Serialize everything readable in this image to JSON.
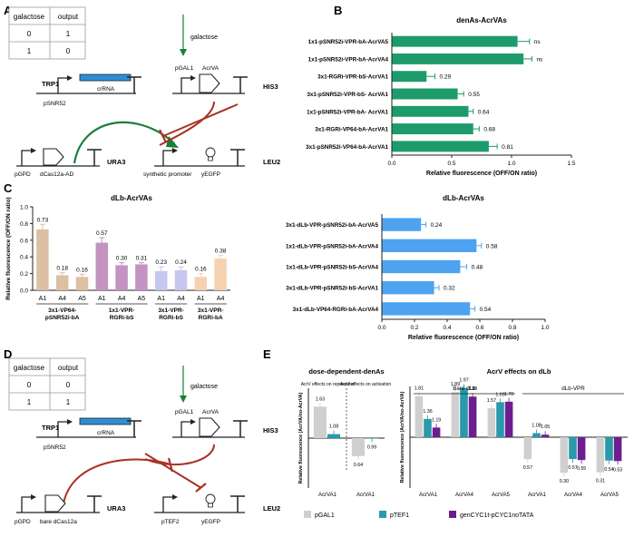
{
  "panels": {
    "A": "A",
    "B": "B",
    "C": "C",
    "D": "D",
    "E": "E"
  },
  "truth_table_A": {
    "header": [
      "galactose",
      "output"
    ],
    "rows": [
      [
        "0",
        "1"
      ],
      [
        "1",
        "0"
      ]
    ]
  },
  "truth_table_D": {
    "header": [
      "galactose",
      "output"
    ],
    "rows": [
      [
        "0",
        "0"
      ],
      [
        "1",
        "1"
      ]
    ]
  },
  "circuit_A": {
    "galactose": "galactose",
    "trp1": "TRP1",
    "psnr52": "pSNR52",
    "crrna": "crRNA",
    "pgal1": "pGAL1",
    "acrva": "AcrVA",
    "his3": "HIS3",
    "pgpd": "pGPD",
    "cas": "dCas12a-AD",
    "ura3": "URA3",
    "synthetic": "synthetic promoter",
    "yegfp": "yEGFP",
    "leu2": "LEU2",
    "colors": {
      "activation": "#1a7f37",
      "repression": "#a83224",
      "crrna_fill": "#2b8fd6"
    }
  },
  "circuit_D": {
    "galactose": "galactose",
    "trp1": "TRP1",
    "psnr52": "pSNR52",
    "crrna": "crRNA",
    "pgal1": "pGAL1",
    "acrva": "AcrVA",
    "his3": "HIS3",
    "pgpd": "pGPD",
    "cas": "bare dCas12a",
    "ura3": "URA3",
    "ptef2": "pTEF2",
    "yegfp": "yEGFP",
    "leu2": "LEU2"
  },
  "chart_data": [
    {
      "id": "B",
      "type": "bar",
      "orientation": "horizontal",
      "title": "denAs-AcrVAs",
      "xlabel": "Relative fluorescence (OFF/ON ratio)",
      "xlim": [
        0,
        1.5
      ],
      "xticks": [
        "0.0",
        "0.5",
        "1.0",
        "1.5"
      ],
      "categories": [
        "1x1-pSNR52i-VPR-bA-AcrVA5",
        "1x1-pSNR52i-VPR-bA-AcrVA4",
        "3x1-RGRi-VPR-bS-AcrVA1",
        "3x1-pSNR52i-VPR-bS- AcrVA1",
        "1x1-pSNR52i-VPR-bA- AcrVA1",
        "3x1-RGRi-VP64-bA-AcrVA1",
        "3x1-pSNR52i-VP64-bA-AcrVA1"
      ],
      "values": [
        1.05,
        1.1,
        0.29,
        0.55,
        0.64,
        0.68,
        0.81
      ],
      "errors": [
        0.1,
        0.07,
        0.07,
        0.05,
        0.04,
        0.05,
        0.07
      ],
      "labels": [
        "ns",
        "ns",
        "0.29",
        "0.55",
        "0.64",
        "0.68",
        "0.81"
      ],
      "color": "#1e9b6b"
    },
    {
      "id": "C-left",
      "type": "bar",
      "title": "dLb-AcrVAs",
      "ylabel": "Relative fluorescence (OFF/ON ratio)",
      "ylim": [
        0,
        1.0
      ],
      "yticks": [
        "0.0",
        "0.2",
        "0.4",
        "0.6",
        "0.8",
        "1.0"
      ],
      "categories": [
        "A1",
        "A4",
        "A5",
        "A1",
        "A4",
        "A5",
        "A1",
        "A4",
        "A1",
        "A4"
      ],
      "values": [
        0.73,
        0.18,
        0.16,
        0.57,
        0.3,
        0.31,
        0.23,
        0.24,
        0.16,
        0.38
      ],
      "errors": [
        0.06,
        0.03,
        0.03,
        0.06,
        0.03,
        0.02,
        0.05,
        0.04,
        0.04,
        0.04
      ],
      "labels": [
        "0.73",
        "0.18",
        "0.16",
        "0.57",
        "0.30",
        "0.31",
        "0.23",
        "0.24",
        "0.16",
        "0.38"
      ],
      "bar_colors": [
        "#dcc0a4",
        "#dcc0a4",
        "#dcc0a4",
        "#c393c1",
        "#c393c1",
        "#c393c1",
        "#c6c6ee",
        "#c6c6ee",
        "#f6d2b2",
        "#f6d2b2"
      ],
      "groups": [
        {
          "label": [
            "3x1-VP64-",
            "pSNR52i-bA"
          ],
          "count": 3
        },
        {
          "label": [
            "1x1-VPR-",
            "RGRi-bS"
          ],
          "count": 3
        },
        {
          "label": [
            "3x1-VPR-",
            "RGRi-bS"
          ],
          "count": 2
        },
        {
          "label": [
            "3x1-VPR-",
            "RGRi-bA"
          ],
          "count": 2
        }
      ]
    },
    {
      "id": "C-right",
      "type": "bar",
      "orientation": "horizontal",
      "title": "dLb-AcrVAs",
      "xlabel": "Relative fluorescence (OFF/ON ratio)",
      "xlim": [
        0,
        1.0
      ],
      "xticks": [
        "0.0",
        "0.2",
        "0.4",
        "0.6",
        "0.8",
        "1.0"
      ],
      "categories": [
        "3x1-dLb-VPR-pSNR52i-bA-AcrVA5",
        "1x1-dLb-VPR-pSNR52i-bA-AcrVA4",
        "1x1-dLb-VPR-pSNR52i-bS-AcrVA4",
        "3x1-dLb-VPR-pSNR52i-bS-AcrVA1",
        "3x1-dLb-VP64-RGRi-bA-AcrVA4"
      ],
      "values": [
        0.24,
        0.58,
        0.48,
        0.32,
        0.54
      ],
      "errors": [
        0.03,
        0.03,
        0.04,
        0.03,
        0.03
      ],
      "labels": [
        "0.24",
        "0.58",
        "0.48",
        "0.32",
        "0.54"
      ],
      "color": "#4da3f0"
    },
    {
      "id": "E-left",
      "type": "bar",
      "title": "dose-dependent-denAs",
      "ylabel": "Relative fluorescence (AcrVA/no-AcrVA)",
      "ylim": [
        0,
        2.0
      ],
      "baseline": 1.0,
      "annotations": [
        "AcrV effects on repression",
        "AcrV effects on activation"
      ],
      "categories": [
        "AcrVA1",
        "AcrVA1"
      ],
      "series": [
        {
          "name": "pGAL1",
          "values": [
            1.63,
            0.64
          ],
          "labels": [
            "1.63",
            "0.64"
          ]
        },
        {
          "name": "pTEF1",
          "values": [
            1.08,
            0.99
          ],
          "labels": [
            "1.08",
            "0.99"
          ]
        }
      ]
    },
    {
      "id": "E-right",
      "type": "bar",
      "title": "AcrV effects on dLb",
      "ylabel": "Relative fluorescence (AcrVA/no-AcrVA)",
      "ylim": [
        0,
        2.0
      ],
      "baseline": 1.0,
      "groups": [
        "Bare dLb",
        "dLb-VPR"
      ],
      "categories": [
        "AcrVA1",
        "AcrVA4",
        "AcrVA5",
        "AcrVA1",
        "AcrVA4",
        "AcrVA5"
      ],
      "series": [
        {
          "name": "pGAL1",
          "values": [
            1.81,
            1.89,
            1.57,
            0.57,
            0.3,
            0.31
          ],
          "labels": [
            "1.81",
            "1.89",
            "1.57",
            "0.57",
            "0.30",
            "0.31"
          ]
        },
        {
          "name": "pTEF1",
          "values": [
            1.36,
            1.97,
            1.69,
            1.08,
            0.57,
            0.54
          ],
          "labels": [
            "1.36",
            "1.97",
            "1.69",
            "1.08",
            "0.57",
            "0.54"
          ]
        },
        {
          "name": "genCYC1t-pCYC1noTATA",
          "values": [
            1.19,
            1.8,
            1.7,
            1.05,
            0.55,
            0.53
          ],
          "labels": [
            "1.19",
            "1.80",
            "1.70",
            "1.05",
            "0.55",
            "0.53"
          ]
        }
      ],
      "colors": [
        "#cfcfcf",
        "#2a99a9",
        "#6c1e90"
      ]
    }
  ],
  "legend_E": [
    {
      "name": "pGAL1",
      "color": "#cfcfcf"
    },
    {
      "name": "pTEF1",
      "color": "#2a99a9"
    },
    {
      "name": "genCYC1t-pCYC1noTATA",
      "color": "#6c1e90"
    }
  ]
}
